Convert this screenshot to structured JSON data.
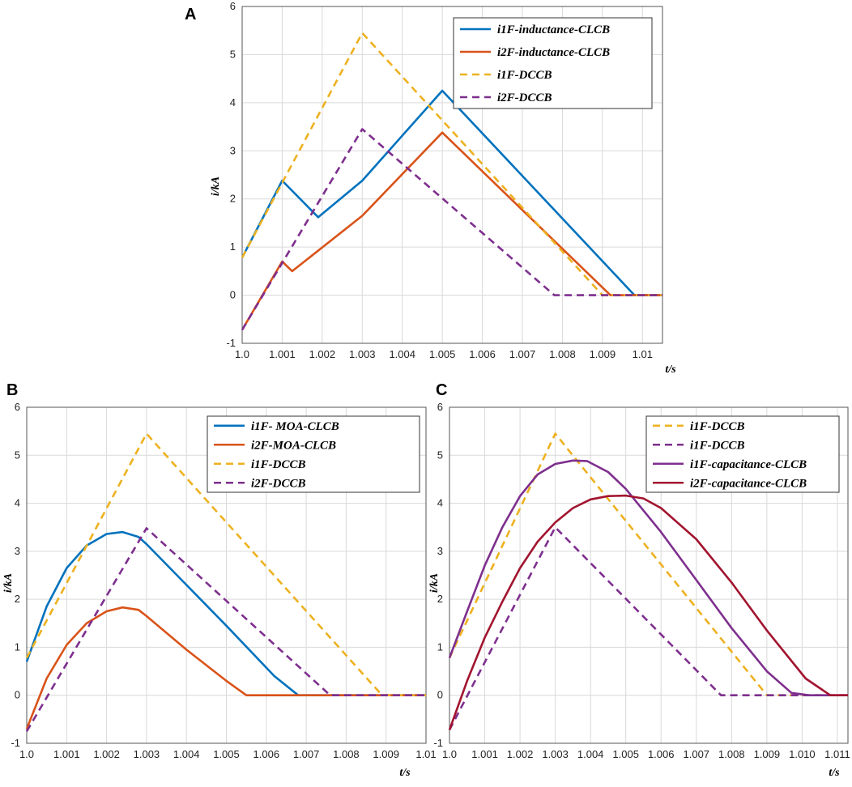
{
  "chart_data": [
    {
      "panel": "A",
      "type": "line",
      "xlabel": "t/s",
      "ylabel": "i/kA",
      "xlim": [
        1.0,
        1.0105
      ],
      "ylim": [
        -1,
        6
      ],
      "xticks": [
        1.0,
        1.001,
        1.002,
        1.003,
        1.004,
        1.005,
        1.006,
        1.007,
        1.008,
        1.009,
        1.01
      ],
      "xtick_labels": [
        "1.0",
        "1.001",
        "1.002",
        "1.003",
        "1.004",
        "1.005",
        "1.006",
        "1.007",
        "1.008",
        "1.009",
        "1.01"
      ],
      "yticks": [
        -1,
        0,
        1,
        2,
        3,
        4,
        5,
        6
      ],
      "ytick_labels": [
        "-1",
        "0",
        "1",
        "2",
        "3",
        "4",
        "5",
        "6"
      ],
      "grid": true,
      "legend_position": "top-right",
      "series": [
        {
          "name": "i1F-inductance-CLCB",
          "color": "#0072bd",
          "dash": false,
          "x": [
            1.0,
            1.001,
            1.0019,
            1.003,
            1.005,
            1.0098,
            1.0105
          ],
          "y": [
            0.78,
            2.38,
            1.62,
            2.38,
            4.25,
            0.0,
            0.0
          ]
        },
        {
          "name": "i2F-inductance-CLCB",
          "color": "#d95319",
          "dash": false,
          "x": [
            1.0,
            1.001,
            1.00125,
            1.003,
            1.005,
            1.0092,
            1.0105
          ],
          "y": [
            -0.72,
            0.7,
            0.5,
            1.65,
            3.38,
            0.0,
            0.0
          ]
        },
        {
          "name": "i1F-DCCB",
          "color": "#edb120",
          "dash": true,
          "x": [
            1.0,
            1.003,
            1.009,
            1.0105
          ],
          "y": [
            0.78,
            5.45,
            0.0,
            0.0
          ]
        },
        {
          "name": "i2F-DCCB",
          "color": "#7e2f8e",
          "dash": true,
          "x": [
            1.0,
            1.003,
            1.0078,
            1.0105
          ],
          "y": [
            -0.72,
            3.45,
            0.0,
            0.0
          ]
        }
      ]
    },
    {
      "panel": "B",
      "type": "line",
      "xlabel": "t/s",
      "ylabel": "i/kA",
      "xlim": [
        1.0,
        1.01
      ],
      "ylim": [
        -1,
        6
      ],
      "xticks": [
        1.0,
        1.001,
        1.002,
        1.003,
        1.004,
        1.005,
        1.006,
        1.007,
        1.008,
        1.009,
        1.01
      ],
      "xtick_labels": [
        "1.0",
        "1.001",
        "1.002",
        "1.003",
        "1.004",
        "1.005",
        "1.006",
        "1.007",
        "1.008",
        "1.009",
        "1.01"
      ],
      "yticks": [
        -1,
        0,
        1,
        2,
        3,
        4,
        5,
        6
      ],
      "ytick_labels": [
        "-1",
        "0",
        "1",
        "2",
        "3",
        "4",
        "5",
        "6"
      ],
      "grid": true,
      "legend_position": "top-right",
      "series": [
        {
          "name": "i1F- MOA-CLCB",
          "color": "#0072bd",
          "dash": false,
          "x": [
            1.0,
            1.0005,
            1.001,
            1.0015,
            1.002,
            1.0024,
            1.0028,
            1.003,
            1.004,
            1.005,
            1.0062,
            1.0068,
            1.01
          ],
          "y": [
            0.7,
            1.85,
            2.65,
            3.12,
            3.36,
            3.4,
            3.3,
            3.15,
            2.3,
            1.45,
            0.4,
            0.0,
            0.0
          ]
        },
        {
          "name": "i2F-MOA-CLCB",
          "color": "#d95319",
          "dash": false,
          "x": [
            1.0,
            1.0005,
            1.001,
            1.0015,
            1.002,
            1.0024,
            1.0028,
            1.003,
            1.004,
            1.005,
            1.0055,
            1.01
          ],
          "y": [
            -0.7,
            0.35,
            1.05,
            1.5,
            1.75,
            1.83,
            1.78,
            1.65,
            0.95,
            0.3,
            0.0,
            0.0
          ]
        },
        {
          "name": "i1F-DCCB",
          "color": "#edb120",
          "dash": true,
          "x": [
            1.0,
            1.003,
            1.0089,
            1.01
          ],
          "y": [
            0.78,
            5.45,
            0.0,
            0.0
          ]
        },
        {
          "name": "i2F-DCCB",
          "color": "#7e2f8e",
          "dash": true,
          "x": [
            1.0,
            1.003,
            1.0076,
            1.01
          ],
          "y": [
            -0.75,
            3.48,
            0.0,
            0.0
          ]
        }
      ]
    },
    {
      "panel": "C",
      "type": "line",
      "xlabel": "t/s",
      "ylabel": "i/kA",
      "xlim": [
        1.0,
        1.0113
      ],
      "ylim": [
        -1,
        6
      ],
      "xticks": [
        1.0,
        1.001,
        1.002,
        1.003,
        1.004,
        1.005,
        1.006,
        1.007,
        1.008,
        1.009,
        1.01,
        1.011
      ],
      "xtick_labels": [
        "1.0",
        "1.001",
        "1.002",
        "1.003",
        "1.004",
        "1.005",
        "1.006",
        "1.007",
        "1.008",
        "1.009",
        "1.010",
        "1.011"
      ],
      "yticks": [
        -1,
        0,
        1,
        2,
        3,
        4,
        5,
        6
      ],
      "ytick_labels": [
        "-1",
        "0",
        "1",
        "2",
        "3",
        "4",
        "5",
        "6"
      ],
      "grid": true,
      "legend_position": "top-right",
      "series": [
        {
          "name": "i1F-DCCB",
          "color": "#edb120",
          "dash": true,
          "x": [
            1.0,
            1.003,
            1.009,
            1.0113
          ],
          "y": [
            0.78,
            5.45,
            0.0,
            0.0
          ]
        },
        {
          "name": "i1F-DCCB",
          "color": "#7e2f8e",
          "dash": true,
          "x": [
            1.0,
            1.003,
            1.0077,
            1.0113
          ],
          "y": [
            -0.72,
            3.5,
            0.0,
            0.0
          ]
        },
        {
          "name": "i1F-capacitance-CLCB",
          "color": "#7e2f8e",
          "dash": false,
          "x": [
            1.0,
            1.0005,
            1.001,
            1.0015,
            1.002,
            1.0025,
            1.003,
            1.0035,
            1.0039,
            1.0045,
            1.005,
            1.006,
            1.007,
            1.008,
            1.009,
            1.0097,
            1.0102,
            1.0113
          ],
          "y": [
            0.78,
            1.75,
            2.7,
            3.5,
            4.15,
            4.6,
            4.82,
            4.89,
            4.88,
            4.65,
            4.3,
            3.4,
            2.4,
            1.4,
            0.5,
            0.05,
            0.0,
            0.0
          ]
        },
        {
          "name": "i2F-capacitance-CLCB",
          "color": "#a2142f",
          "dash": false,
          "x": [
            1.0,
            1.0005,
            1.001,
            1.0015,
            1.002,
            1.0025,
            1.003,
            1.0035,
            1.004,
            1.0045,
            1.005,
            1.0055,
            1.006,
            1.007,
            1.008,
            1.009,
            1.0101,
            1.0108,
            1.0113
          ],
          "y": [
            -0.72,
            0.3,
            1.2,
            1.95,
            2.65,
            3.2,
            3.6,
            3.9,
            4.08,
            4.15,
            4.16,
            4.1,
            3.9,
            3.25,
            2.35,
            1.35,
            0.35,
            0.0,
            0.0
          ]
        }
      ]
    }
  ]
}
